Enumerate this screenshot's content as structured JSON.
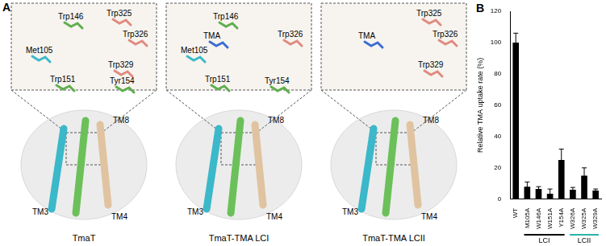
{
  "panel_a": {
    "label": "A",
    "structures": [
      {
        "title": "TmaT",
        "residues": [
          "Trp146",
          "Trp325",
          "Trp326",
          "Met105",
          "Trp329",
          "Trp151",
          "Tyr154"
        ],
        "helices": [
          "TM3",
          "TM4",
          "TM8"
        ]
      },
      {
        "title": "TmaT-TMA LCI",
        "residues": [
          "Trp146",
          "Trp326",
          "TMA",
          "Met105",
          "Trp151",
          "Tyr154"
        ],
        "helices": [
          "TM3",
          "TM4",
          "TM8"
        ]
      },
      {
        "title": "TmaT-TMA LCII",
        "residues": [
          "Trp325",
          "TMA",
          "Trp326",
          "Trp329"
        ],
        "helices": [
          "TM3",
          "TM4",
          "TM8"
        ]
      }
    ]
  },
  "panel_b": {
    "label": "B"
  },
  "chart_data": {
    "type": "bar",
    "y_label": "Relative TMA uptake rate (%)",
    "categories": [
      "WT",
      "M105A",
      "W146A",
      "W151A",
      "Y154A",
      "W326A",
      "W325A",
      "W329A"
    ],
    "values": [
      100,
      8,
      6.5,
      3.5,
      25,
      6,
      15,
      5.5
    ],
    "errors": [
      6,
      3,
      1.5,
      3,
      7,
      1.5,
      5,
      1
    ],
    "color": "#000000",
    "ylim": [
      0,
      120
    ],
    "yticks": [
      0,
      20,
      40,
      60,
      80,
      100,
      120
    ],
    "grid": false,
    "groups": [
      {
        "label": "LCI",
        "from": "M105A",
        "to": "Y154A",
        "color": "#000000"
      },
      {
        "label": "LCII",
        "from": "W326A",
        "to": "W329A",
        "color": "#2bb3a6"
      }
    ]
  }
}
